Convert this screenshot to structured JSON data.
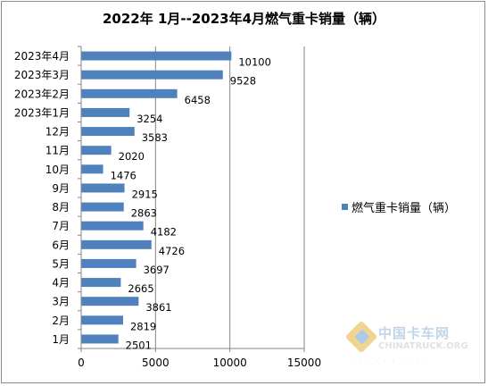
{
  "chart_data": {
    "type": "bar",
    "orientation": "horizontal",
    "title": "2022年 1月--2023年4月燃气重卡销量（辆）",
    "categories": [
      "1月",
      "2月",
      "3月",
      "4月",
      "5月",
      "6月",
      "7月",
      "8月",
      "9月",
      "10月",
      "11月",
      "12月",
      "2023年1月",
      "2023年2月",
      "2023年3月",
      "2023年4月"
    ],
    "series": [
      {
        "name": "燃气重卡销量（辆）",
        "values": [
          2501,
          2819,
          3861,
          2665,
          3697,
          4726,
          4182,
          2863,
          2915,
          1476,
          2020,
          3583,
          3254,
          6458,
          9528,
          10100
        ]
      }
    ],
    "xlim": [
      0,
      15000
    ],
    "xticks": [
      0,
      5000,
      10000,
      15000
    ],
    "xlabel": "",
    "ylabel": "",
    "grid": "vertical major gridlines",
    "legend": "right",
    "data_labels": true,
    "colors": {
      "bar": "#4f81bd",
      "grid": "#868686",
      "axis": "#868686",
      "border": "#8c8c8c"
    }
  },
  "watermark": {
    "name_cn": "中国卡车网",
    "name_en": "CHINATRUCK.ORG"
  }
}
